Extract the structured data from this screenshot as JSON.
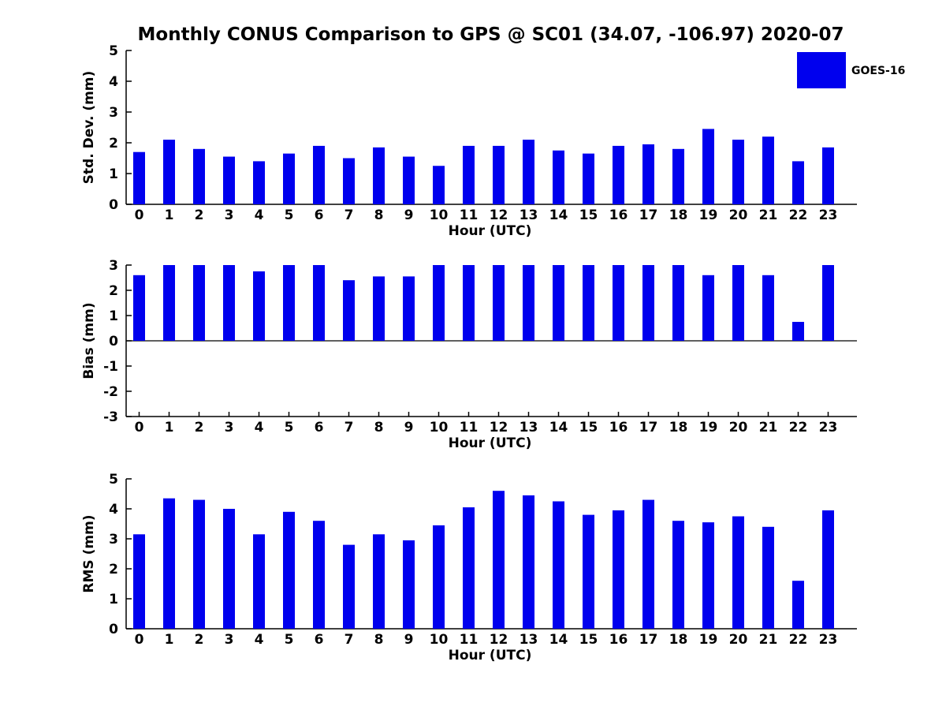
{
  "title": "Monthly CONUS Comparison to GPS @ SC01 (34.07, -106.97) 2020-07",
  "legend": {
    "label": "GOES-16",
    "swatch_color": "#0000EE"
  },
  "colors": {
    "bar": "#0000EE",
    "axis": "#000000",
    "text": "#000000",
    "background": "#FFFFFF"
  },
  "chart_data": [
    {
      "type": "bar",
      "series_name": "GOES-16",
      "ylabel": "Std. Dev. (mm)",
      "xlabel": "Hour (UTC)",
      "categories": [
        "0",
        "1",
        "2",
        "3",
        "4",
        "5",
        "6",
        "7",
        "8",
        "9",
        "10",
        "11",
        "12",
        "13",
        "14",
        "15",
        "16",
        "17",
        "18",
        "19",
        "20",
        "21",
        "22",
        "23"
      ],
      "values": [
        1.7,
        2.1,
        1.8,
        1.55,
        1.4,
        1.65,
        1.9,
        1.5,
        1.85,
        1.55,
        1.25,
        1.9,
        1.9,
        2.1,
        1.75,
        1.65,
        1.9,
        1.95,
        1.8,
        2.45,
        2.1,
        2.2,
        1.4,
        1.85
      ],
      "ylim": [
        0,
        5
      ],
      "yticks": [
        0,
        1,
        2,
        3,
        4,
        5
      ],
      "grid": false,
      "legend_position": "upper-right-outside"
    },
    {
      "type": "bar",
      "series_name": "GOES-16",
      "ylabel": "Bias (mm)",
      "xlabel": "Hour (UTC)",
      "categories": [
        "0",
        "1",
        "2",
        "3",
        "4",
        "5",
        "6",
        "7",
        "8",
        "9",
        "10",
        "11",
        "12",
        "13",
        "14",
        "15",
        "16",
        "17",
        "18",
        "19",
        "20",
        "21",
        "22",
        "23"
      ],
      "values": [
        2.6,
        3.0,
        3.0,
        3.0,
        2.75,
        3.0,
        3.0,
        2.4,
        2.55,
        2.55,
        3.0,
        3.0,
        3.0,
        3.0,
        3.0,
        3.0,
        3.0,
        3.0,
        3.0,
        2.6,
        3.0,
        2.6,
        0.75,
        3.0
      ],
      "ylim": [
        -3,
        3
      ],
      "yticks": [
        -3,
        -2,
        -1,
        0,
        1,
        2,
        3
      ],
      "grid": false
    },
    {
      "type": "bar",
      "series_name": "GOES-16",
      "ylabel": "RMS (mm)",
      "xlabel": "Hour (UTC)",
      "categories": [
        "0",
        "1",
        "2",
        "3",
        "4",
        "5",
        "6",
        "7",
        "8",
        "9",
        "10",
        "11",
        "12",
        "13",
        "14",
        "15",
        "16",
        "17",
        "18",
        "19",
        "20",
        "21",
        "22",
        "23"
      ],
      "values": [
        3.15,
        4.35,
        4.3,
        4.0,
        3.15,
        3.9,
        3.6,
        2.8,
        3.15,
        2.95,
        3.45,
        4.05,
        4.6,
        4.45,
        4.25,
        3.8,
        3.95,
        4.3,
        3.6,
        3.55,
        3.75,
        3.4,
        1.6,
        3.95
      ],
      "ylim": [
        0,
        5
      ],
      "yticks": [
        0,
        1,
        2,
        3,
        4,
        5
      ],
      "grid": false
    }
  ]
}
